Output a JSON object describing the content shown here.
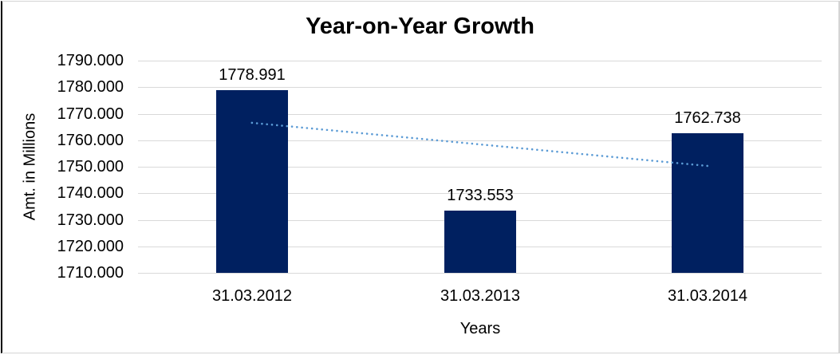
{
  "chart_data": {
    "type": "bar",
    "title": "Year-on-Year Growth",
    "xlabel": "Years",
    "ylabel": "Amt. in Millions",
    "categories": [
      "31.03.2012",
      "31.03.2013",
      "31.03.2014"
    ],
    "values": [
      1778.991,
      1733.553,
      1762.738
    ],
    "value_labels": [
      "1778.991",
      "1733.553",
      "1762.738"
    ],
    "y_ticks": [
      "1790.000",
      "1780.000",
      "1770.000",
      "1760.000",
      "1750.000",
      "1740.000",
      "1730.000",
      "1720.000",
      "1710.000"
    ],
    "ylim": [
      1710,
      1790
    ],
    "grid": true,
    "legend": "none",
    "colors": {
      "bar": "#002060",
      "trendline": "#5B9BD5",
      "gridline": "#d9d9d9",
      "text": "#000000",
      "background": "#ffffff"
    },
    "trendline": {
      "type": "linear",
      "style": "dotted",
      "start_value": 1766.55,
      "end_value": 1750.3
    }
  }
}
